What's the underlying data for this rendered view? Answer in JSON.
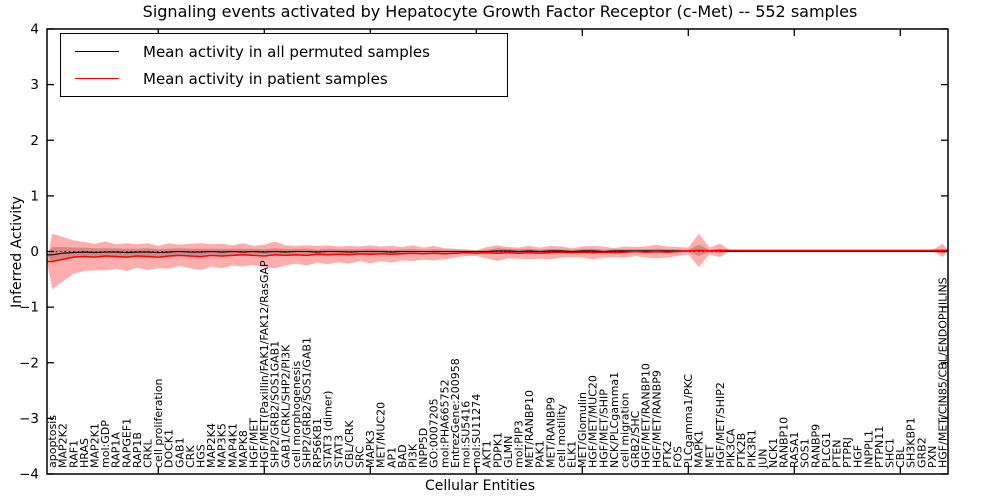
{
  "title": "Signaling events activated by Hepatocyte Growth Factor Receptor (c-Met) -- 552 samples",
  "legend": {
    "entries": [
      {
        "label": "Mean activity in all permuted samples",
        "color": "#000000"
      },
      {
        "label": "Mean activity in patient samples",
        "color": "#ff0000"
      }
    ]
  },
  "chart_data": {
    "type": "line",
    "title": "Signaling events activated by Hepatocyte Growth Factor Receptor (c-Met) -- 552 samples",
    "xlabel": "Cellular Entities",
    "ylabel": "Inferred Activity",
    "ylim": [
      -4,
      4
    ],
    "grid": false,
    "legend_position": "upper left",
    "yticks": [
      {
        "v": 4,
        "label": "4"
      },
      {
        "v": 3,
        "label": "3"
      },
      {
        "v": 2,
        "label": "2"
      },
      {
        "v": 1,
        "label": "1"
      },
      {
        "v": 0,
        "label": "0"
      },
      {
        "v": -1,
        "label": "−1"
      },
      {
        "v": -2,
        "label": "−2"
      },
      {
        "v": -3,
        "label": "−3"
      },
      {
        "v": -4,
        "label": "−4"
      }
    ],
    "zero_line": {
      "y": 0,
      "style": "dotted",
      "color": "#000000"
    },
    "categories": [
      "apoptosis",
      "MAP2K2",
      "RAF1",
      "HRAS",
      "MAP2K1",
      "mol:GDP",
      "RAP1A",
      "RAPGEF1",
      "RAP1B",
      "CRKL",
      "cell proliferation",
      "DOCK1",
      "GAB1",
      "CRK",
      "HGS",
      "MAP2K4",
      "MAP3K5",
      "MAP4K1",
      "MAPK8",
      "HGF/MET",
      "HGF/MET(Paxillin/FAK1/FAK12/RasGAP",
      "SHP2/GRB2/SOS1GAB1",
      "GAB1/CRKL/SHP2/PI3K",
      "cell morphogenesis",
      "SHP2/GRB2/SOS1/GAB1",
      "RPS6KB1",
      "STAT3 (dimer)",
      "STAT3",
      "CBL/CRK",
      "SRC",
      "MAPK3",
      "MET/MUC20",
      "AP1",
      "BAD",
      "PI3K",
      "INPP5D",
      "GO:0007205",
      "mol:PHA665752",
      "EntrezGene:200958",
      "mol:SU5416",
      "mol:SU11274",
      "AKT1",
      "PDPK1",
      "GLMN",
      "mol:PIP3",
      "MET/RANBP10",
      "PAK1",
      "MET/RANBP9",
      "cell motility",
      "ELK1",
      "MET/Glomulin",
      "HGF/MET/MUC20",
      "HGF/MET/SHIP",
      "NCK/PLCgamma1",
      "cell migration",
      "GRB2/SHC",
      "HGF/MET/RANBP10",
      "HGF/MET/RANBP9",
      "PTK2",
      "FOS",
      "PLCgamma1/PKC",
      "MAPK1",
      "MET",
      "HGF/MET/SHIP2",
      "PIK3CA",
      "PTK2B",
      "PIK3R1",
      "JUN",
      "NCK1",
      "RANBP10",
      "RASA1",
      "SOS1",
      "RANBP9",
      "PLCG1",
      "PTEN",
      "PTPRJ",
      "HGF",
      "INPPL1",
      "PTPN11",
      "SHC1",
      "CBL",
      "SH3KBP1",
      "GRB2",
      "PXN",
      "HGF/MET/CIN85/CBL/ENDOPHILINS"
    ],
    "series": [
      {
        "name": "Mean activity in all permuted samples",
        "color": "#000000",
        "line_width": 1.1,
        "band_color": "rgba(110,110,110,0.40)",
        "values": [
          -0.06,
          -0.03,
          -0.02,
          -0.01,
          -0.02,
          -0.01,
          -0.01,
          -0.02,
          -0.01,
          -0.01,
          -0.02,
          -0.01,
          0.0,
          -0.01,
          -0.01,
          0.0,
          -0.01,
          0.0,
          -0.01,
          0.0,
          -0.01,
          0.0,
          -0.01,
          0.0,
          0.0,
          -0.01,
          0.0,
          0.0,
          -0.01,
          0.0,
          0.0,
          0.0,
          -0.01,
          0.0,
          0.0,
          0.0,
          0.0,
          0.0,
          0.0,
          0.0,
          0.0,
          0.0,
          0.01,
          0.01,
          0.0,
          0.01,
          0.0,
          0.01,
          0.01,
          0.0,
          0.01,
          0.01,
          0.0,
          0.01,
          0.01,
          0.01,
          0.01,
          0.01,
          0.01,
          0.01,
          0.01,
          0.02,
          0.01,
          0.01,
          0.0,
          0.0,
          0.0,
          0.0,
          0.0,
          0.0,
          0.0,
          0.0,
          0.0,
          0.0,
          0.0,
          0.0,
          0.0,
          0.0,
          0.0,
          0.0,
          0.0,
          0.0,
          0.0,
          0.0,
          0.0
        ],
        "band_halfwidth": [
          0.14,
          0.11,
          0.09,
          0.08,
          0.08,
          0.07,
          0.07,
          0.07,
          0.06,
          0.07,
          0.06,
          0.06,
          0.06,
          0.06,
          0.06,
          0.05,
          0.06,
          0.05,
          0.06,
          0.05,
          0.05,
          0.06,
          0.05,
          0.05,
          0.05,
          0.04,
          0.05,
          0.04,
          0.05,
          0.04,
          0.05,
          0.04,
          0.04,
          0.04,
          0.04,
          0.03,
          0.04,
          0.03,
          0.03,
          0.02,
          0.02,
          0.03,
          0.05,
          0.04,
          0.04,
          0.04,
          0.03,
          0.04,
          0.03,
          0.03,
          0.03,
          0.04,
          0.03,
          0.03,
          0.03,
          0.03,
          0.03,
          0.04,
          0.03,
          0.03,
          0.02,
          0.1,
          0.02,
          0.04,
          0.0,
          0.0,
          0.0,
          0.0,
          0.0,
          0.0,
          0.0,
          0.0,
          0.0,
          0.0,
          0.0,
          0.0,
          0.0,
          0.0,
          0.0,
          0.0,
          0.0,
          0.0,
          0.0,
          0.0,
          0.04
        ]
      },
      {
        "name": "Mean activity in patient samples",
        "color": "#ff0000",
        "line_width": 1.5,
        "band_color": "rgba(255,0,0,0.32)",
        "values": [
          -0.18,
          -0.14,
          -0.1,
          -0.09,
          -0.1,
          -0.08,
          -0.09,
          -0.1,
          -0.08,
          -0.09,
          -0.1,
          -0.08,
          -0.07,
          -0.08,
          -0.09,
          -0.07,
          -0.08,
          -0.07,
          -0.06,
          -0.07,
          -0.08,
          -0.06,
          -0.07,
          -0.06,
          -0.07,
          -0.05,
          -0.06,
          -0.05,
          -0.06,
          -0.04,
          -0.05,
          -0.04,
          -0.05,
          -0.04,
          -0.03,
          -0.04,
          -0.03,
          -0.04,
          -0.03,
          -0.02,
          -0.03,
          -0.02,
          -0.03,
          -0.02,
          -0.03,
          -0.02,
          -0.03,
          -0.02,
          -0.01,
          -0.02,
          -0.01,
          -0.02,
          -0.01,
          -0.02,
          -0.01,
          0.0,
          -0.01,
          0.0,
          -0.01,
          0.0,
          0.01,
          0.02,
          0.01,
          0.02,
          0.02,
          0.02,
          0.02,
          0.02,
          0.02,
          0.02,
          0.02,
          0.02,
          0.02,
          0.02,
          0.02,
          0.02,
          0.02,
          0.02,
          0.02,
          0.02,
          0.02,
          0.02,
          0.02,
          0.02,
          0.02
        ],
        "band_halfwidth": [
          0.5,
          0.4,
          0.3,
          0.26,
          0.24,
          0.26,
          0.22,
          0.25,
          0.21,
          0.24,
          0.2,
          0.23,
          0.19,
          0.22,
          0.24,
          0.2,
          0.22,
          0.18,
          0.21,
          0.17,
          0.2,
          0.24,
          0.18,
          0.16,
          0.18,
          0.15,
          0.17,
          0.14,
          0.16,
          0.13,
          0.16,
          0.13,
          0.15,
          0.12,
          0.14,
          0.11,
          0.13,
          0.1,
          0.08,
          0.06,
          0.05,
          0.1,
          0.14,
          0.1,
          0.1,
          0.12,
          0.1,
          0.12,
          0.1,
          0.08,
          0.1,
          0.12,
          0.1,
          0.08,
          0.1,
          0.08,
          0.1,
          0.12,
          0.1,
          0.08,
          0.06,
          0.3,
          0.06,
          0.12,
          0.0,
          0.0,
          0.0,
          0.0,
          0.0,
          0.0,
          0.0,
          0.0,
          0.0,
          0.0,
          0.0,
          0.0,
          0.0,
          0.0,
          0.0,
          0.0,
          0.0,
          0.0,
          0.0,
          0.0,
          0.12
        ]
      }
    ]
  }
}
